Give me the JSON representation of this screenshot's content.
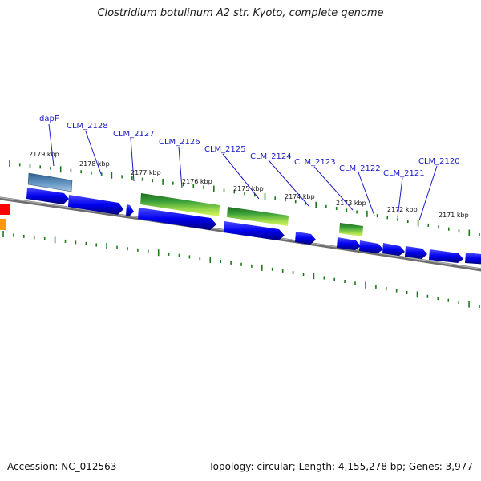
{
  "title": "Clostridium botulinum A2 str. Kyoto, complete genome",
  "footer": {
    "accession": "Accession: NC_012563",
    "info": "Topology: circular; Length: 4,155,278 bp; Genes: 3,977"
  },
  "colors": {
    "backbone": "#888888",
    "cds": "#0000ee",
    "gene": "#4a7fb0",
    "rna_dark": "#1f7a1f",
    "rna_light": "#c8f050",
    "tick": "#1a7a1a",
    "label": "#1a1ac8",
    "red_feature": "#ff0000",
    "orange_feature": "#ff9900"
  },
  "kbp_labels": [
    "2179 kbp",
    "2178 kbp",
    "2177 kbp",
    "2176 kbp",
    "2175 kbp",
    "2174 kbp",
    "2173 kbp",
    "2172 kbp",
    "2171 kbp"
  ],
  "gene_labels": [
    "dapF",
    "CLM_2128",
    "CLM_2127",
    "CLM_2126",
    "CLM_2125",
    "CLM_2124",
    "CLM_2123",
    "CLM_2122",
    "CLM_2121",
    "CLM_2120"
  ]
}
